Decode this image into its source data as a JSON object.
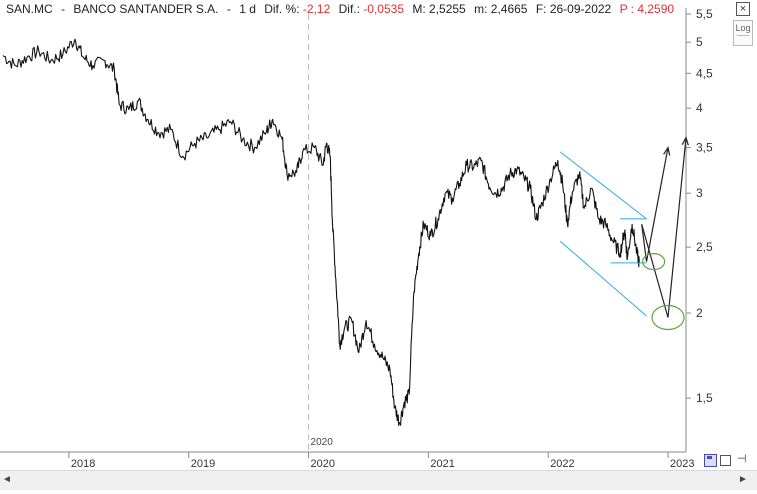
{
  "header": {
    "symbol": "SAN.MC",
    "sep1": "-",
    "name": "BANCO SANTANDER S.A.",
    "sep2": "-",
    "period": "1 d",
    "dif_pct_label": "Dif. %:",
    "dif_pct_value": "-2,12",
    "dif_label": "Dif.:",
    "dif_value": "-0,0535",
    "m_label": "M:",
    "m_value": "2,5255",
    "m2_label": "m:",
    "m2_value": "2,4665",
    "f_label": "F:",
    "f_value": "26-09-2022",
    "p_label": "P :",
    "p_value": "4,2590"
  },
  "controls": {
    "log_label": "Log",
    "close_glyph": "×",
    "scroll_left_glyph": "◄",
    "scroll_right_glyph": "►"
  },
  "colors": {
    "price_line": "#111111",
    "channel": "#2fa8e0",
    "projection": "#222222",
    "target_ellipse": "#5aa83a",
    "negative_text": "#e03030",
    "axis": "#888888",
    "year_marker": "#bbbbbb"
  },
  "chart_data": {
    "type": "line",
    "title": "SAN.MC - BANCO SANTANDER S.A. - 1 d",
    "y_scale": "log",
    "ylim": [
      1.25,
      5.5
    ],
    "y_ticks": [
      {
        "value": 5.5,
        "label": "5,5"
      },
      {
        "value": 5,
        "label": "5"
      },
      {
        "value": 4.5,
        "label": "4,5"
      },
      {
        "value": 4,
        "label": "4"
      },
      {
        "value": 3.5,
        "label": "3,5"
      },
      {
        "value": 3,
        "label": "3"
      },
      {
        "value": 2.5,
        "label": "2,5"
      },
      {
        "value": 2,
        "label": "2"
      },
      {
        "value": 1.5,
        "label": "1,5"
      }
    ],
    "xlim": [
      2017.45,
      2023.15
    ],
    "x_ticks": [
      {
        "value": 2018.0,
        "label": "2018"
      },
      {
        "value": 2019.0,
        "label": "2019"
      },
      {
        "value": 2020.0,
        "label": "2020"
      },
      {
        "value": 2021.0,
        "label": "2021"
      },
      {
        "value": 2022.0,
        "label": "2022"
      },
      {
        "value": 2023.0,
        "label": "2023"
      }
    ],
    "year_marker": {
      "x": 2020.0,
      "label": "2020"
    },
    "series": [
      {
        "values": [
          [
            2017.45,
            4.78
          ],
          [
            2017.55,
            4.62
          ],
          [
            2017.65,
            4.75
          ],
          [
            2017.75,
            4.85
          ],
          [
            2017.85,
            4.7
          ],
          [
            2017.95,
            4.8
          ],
          [
            2018.05,
            5.05
          ],
          [
            2018.12,
            4.75
          ],
          [
            2018.2,
            4.62
          ],
          [
            2018.3,
            4.7
          ],
          [
            2018.38,
            4.55
          ],
          [
            2018.42,
            4.05
          ],
          [
            2018.5,
            3.98
          ],
          [
            2018.58,
            4.1
          ],
          [
            2018.66,
            3.85
          ],
          [
            2018.75,
            3.68
          ],
          [
            2018.85,
            3.72
          ],
          [
            2018.95,
            3.4
          ],
          [
            2019.05,
            3.55
          ],
          [
            2019.15,
            3.62
          ],
          [
            2019.25,
            3.72
          ],
          [
            2019.35,
            3.82
          ],
          [
            2019.45,
            3.6
          ],
          [
            2019.55,
            3.5
          ],
          [
            2019.65,
            3.7
          ],
          [
            2019.7,
            3.85
          ],
          [
            2019.78,
            3.6
          ],
          [
            2019.82,
            3.2
          ],
          [
            2019.9,
            3.22
          ],
          [
            2019.95,
            3.45
          ],
          [
            2020.05,
            3.5
          ],
          [
            2020.12,
            3.3
          ],
          [
            2020.15,
            3.55
          ],
          [
            2020.18,
            3.4
          ],
          [
            2020.2,
            2.7
          ],
          [
            2020.23,
            2.2
          ],
          [
            2020.26,
            1.8
          ],
          [
            2020.3,
            1.9
          ],
          [
            2020.36,
            1.95
          ],
          [
            2020.42,
            1.75
          ],
          [
            2020.48,
            1.95
          ],
          [
            2020.55,
            1.8
          ],
          [
            2020.62,
            1.72
          ],
          [
            2020.68,
            1.65
          ],
          [
            2020.72,
            1.45
          ],
          [
            2020.76,
            1.38
          ],
          [
            2020.8,
            1.48
          ],
          [
            2020.84,
            1.52
          ],
          [
            2020.88,
            2.15
          ],
          [
            2020.92,
            2.45
          ],
          [
            2020.96,
            2.7
          ],
          [
            2021.02,
            2.6
          ],
          [
            2021.08,
            2.75
          ],
          [
            2021.14,
            3.0
          ],
          [
            2021.2,
            2.95
          ],
          [
            2021.26,
            3.1
          ],
          [
            2021.32,
            3.3
          ],
          [
            2021.38,
            3.28
          ],
          [
            2021.44,
            3.35
          ],
          [
            2021.5,
            3.1
          ],
          [
            2021.56,
            3.0
          ],
          [
            2021.62,
            3.05
          ],
          [
            2021.68,
            3.2
          ],
          [
            2021.74,
            3.25
          ],
          [
            2021.8,
            3.15
          ],
          [
            2021.85,
            3.05
          ],
          [
            2021.9,
            2.75
          ],
          [
            2021.95,
            2.9
          ],
          [
            2022.02,
            3.15
          ],
          [
            2022.08,
            3.35
          ],
          [
            2022.12,
            3.1
          ],
          [
            2022.16,
            2.7
          ],
          [
            2022.2,
            3.0
          ],
          [
            2022.26,
            3.2
          ],
          [
            2022.3,
            2.85
          ],
          [
            2022.36,
            3.05
          ],
          [
            2022.42,
            2.75
          ],
          [
            2022.48,
            2.7
          ],
          [
            2022.54,
            2.55
          ],
          [
            2022.6,
            2.45
          ],
          [
            2022.64,
            2.65
          ],
          [
            2022.66,
            2.4
          ],
          [
            2022.7,
            2.7
          ],
          [
            2022.74,
            2.45
          ],
          [
            2022.76,
            2.37
          ]
        ]
      }
    ],
    "annotations": {
      "channel_upper": [
        [
          2022.1,
          3.45
        ],
        [
          2022.82,
          2.75
        ]
      ],
      "channel_lower": [
        [
          2022.1,
          2.55
        ],
        [
          2022.82,
          1.98
        ]
      ],
      "support_line": [
        [
          2022.52,
          2.37
        ],
        [
          2022.82,
          2.37
        ]
      ],
      "resistance_line": [
        [
          2022.6,
          2.75
        ],
        [
          2022.82,
          2.75
        ]
      ],
      "projection_1": [
        [
          2022.78,
          2.7
        ],
        [
          2022.82,
          2.38
        ],
        [
          2023.0,
          3.5
        ]
      ],
      "projection_2": [
        [
          2022.78,
          2.7
        ],
        [
          2023.0,
          1.97
        ],
        [
          2023.15,
          3.62
        ]
      ],
      "target_ellipse_1": {
        "x": 2022.88,
        "y": 2.38
      },
      "target_ellipse_2": {
        "x": 2023.0,
        "y": 1.97
      }
    }
  }
}
